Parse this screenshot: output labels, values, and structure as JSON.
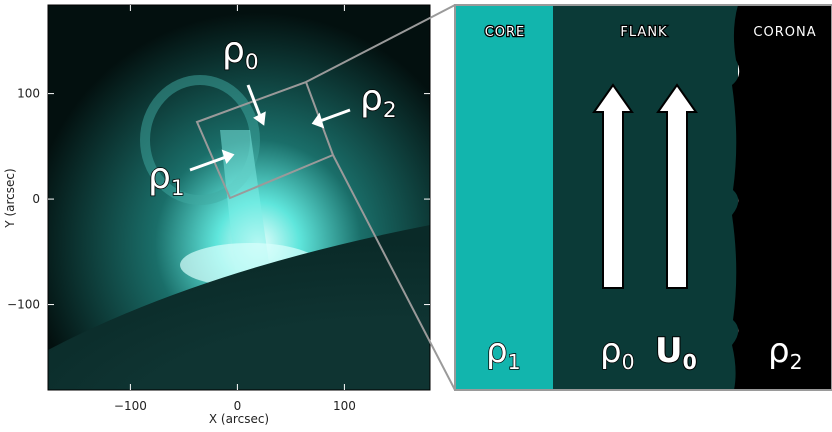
{
  "chart_data": {
    "type": "image-with-schematic",
    "xlabel": "X (arcsec)",
    "ylabel": "Y (arcsec)",
    "xlim": [
      -177,
      180
    ],
    "ylim": [
      -181,
      184
    ],
    "xticks": [
      {
        "value": -100,
        "label": "−100"
      },
      0,
      100
    ],
    "yticks": [
      {
        "value": -100,
        "label": "−100"
      },
      0,
      100
    ],
    "image_labels": [
      {
        "symbol": "ρ",
        "subscript": "0"
      },
      {
        "symbol": "ρ",
        "subscript": "1"
      },
      {
        "symbol": "ρ",
        "subscript": "2"
      }
    ],
    "schematic": {
      "headers": [
        "CORE",
        "FLANK",
        "CORONA"
      ],
      "labels": [
        {
          "symbol": "ρ",
          "subscript": "1"
        },
        {
          "symbol": "ρ",
          "subscript": "0"
        },
        {
          "symbol": "U",
          "subscript": "0"
        },
        {
          "symbol": "ρ",
          "subscript": "2"
        }
      ]
    }
  }
}
